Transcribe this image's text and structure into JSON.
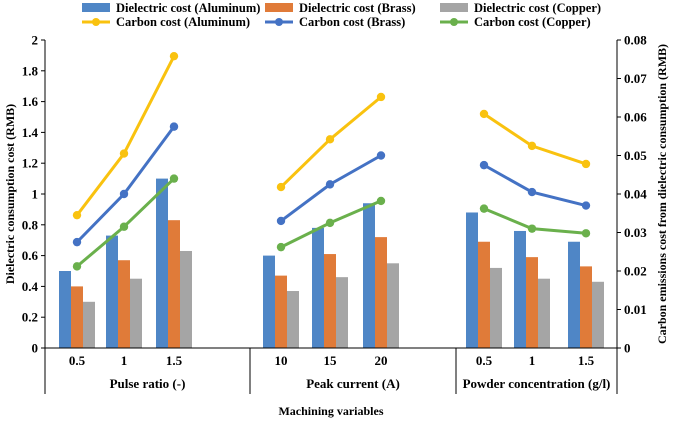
{
  "chart_data": {
    "type": "bar+line",
    "xlabel": "Machining variables",
    "ylabel_left": "Dielectric consumption cost (RMB)",
    "ylabel_right": "Carbon emissions cost from dielectric consumption (RMB)",
    "ylim_left": [
      0,
      2
    ],
    "ylim_right": [
      0,
      0.08
    ],
    "yticks_left": [
      "0",
      "0.2",
      "0.4",
      "0.6",
      "0.8",
      "1",
      "1.2",
      "1.4",
      "1.6",
      "1.8",
      "2"
    ],
    "yticks_right": [
      "0",
      "0.01",
      "0.02",
      "0.03",
      "0.04",
      "0.05",
      "0.06",
      "0.07",
      "0.08"
    ],
    "groups": [
      {
        "label": "Pulse ratio (-)",
        "categories": [
          "0.5",
          "1",
          "1.5"
        ]
      },
      {
        "label": "Peak current (A)",
        "categories": [
          "10",
          "15",
          "20"
        ]
      },
      {
        "label": "Powder concentration (g/l)",
        "categories": [
          "0.5",
          "1",
          "1.5"
        ]
      }
    ],
    "bar_series": [
      {
        "name": "Dielectric cost (Aluminum)",
        "color": "#4f86c6",
        "values": [
          [
            0.5,
            0.73,
            1.1
          ],
          [
            0.6,
            0.78,
            0.94
          ],
          [
            0.88,
            0.76,
            0.69
          ]
        ]
      },
      {
        "name": "Dielectric cost (Brass)",
        "color": "#e07b39",
        "values": [
          [
            0.4,
            0.57,
            0.83
          ],
          [
            0.47,
            0.61,
            0.72
          ],
          [
            0.69,
            0.59,
            0.53
          ]
        ]
      },
      {
        "name": "Dielectric cost (Copper)",
        "color": "#a5a5a5",
        "values": [
          [
            0.3,
            0.45,
            0.63
          ],
          [
            0.37,
            0.46,
            0.55
          ],
          [
            0.52,
            0.45,
            0.43
          ]
        ]
      }
    ],
    "line_series": [
      {
        "name": "Carbon cost (Aluminum)",
        "color": "#f9c20f",
        "values": [
          [
            0.0345,
            0.0505,
            0.0758
          ],
          [
            0.0418,
            0.0542,
            0.0652
          ],
          [
            0.0608,
            0.0525,
            0.0478
          ]
        ]
      },
      {
        "name": "Carbon cost (Brass)",
        "color": "#4472c4",
        "values": [
          [
            0.0275,
            0.04,
            0.0575
          ],
          [
            0.033,
            0.0425,
            0.05
          ],
          [
            0.0475,
            0.0405,
            0.037
          ]
        ]
      },
      {
        "name": "Carbon cost (Copper)",
        "color": "#6ab04c",
        "values": [
          [
            0.0212,
            0.0315,
            0.044
          ],
          [
            0.0262,
            0.0325,
            0.0382
          ],
          [
            0.0362,
            0.031,
            0.0298
          ]
        ]
      }
    ],
    "legend": [
      "Dielectric cost (Aluminum)",
      "Dielectric cost (Brass)",
      "Dielectric cost (Copper)",
      "Carbon cost (Aluminum)",
      "Carbon cost (Brass)",
      "Carbon cost (Copper)"
    ]
  }
}
